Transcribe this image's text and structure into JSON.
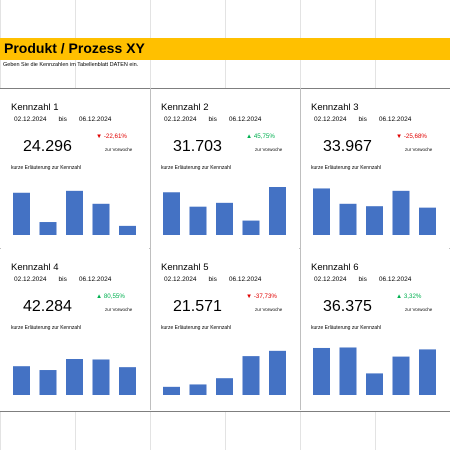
{
  "sheet": {
    "title": "Produkt / Prozess XY",
    "hint": "Geben Sie die Kennzahlen im Tabellenblatt DATEN ein."
  },
  "colors": {
    "title_bar": "#ffc000",
    "bar": "#4472c4",
    "up": "#00b050",
    "down": "#e00000"
  },
  "cards": [
    {
      "title": "Kennzahl 1",
      "from": "02.12.2024",
      "bis": "bis",
      "to": "06.12.2024",
      "value": "24.296",
      "change": "▼ -22,61%",
      "direction": "down",
      "vs": "zur Vorwoche",
      "explanation": "kurze Erläuterung zur Kennzahl",
      "bars": [
        0.88,
        0.27,
        0.92,
        0.65,
        0.19
      ]
    },
    {
      "title": "Kennzahl 2",
      "from": "02.12.2024",
      "bis": "bis",
      "to": "06.12.2024",
      "value": "31.703",
      "change": "▲ 45,75%",
      "direction": "up",
      "vs": "zur Vorwoche",
      "explanation": "kurze Erläuterung zur Kennzahl",
      "bars": [
        0.89,
        0.59,
        0.67,
        0.3,
        1.0
      ]
    },
    {
      "title": "Kennzahl 3",
      "from": "02.12.2024",
      "bis": "bis",
      "to": "06.12.2024",
      "value": "33.967",
      "change": "▼ -25,68%",
      "direction": "down",
      "vs": "zur Vorwoche",
      "explanation": "kurze Erläuterung zur Kennzahl",
      "bars": [
        0.97,
        0.65,
        0.6,
        0.92,
        0.57
      ]
    },
    {
      "title": "Kennzahl 4",
      "from": "02.12.2024",
      "bis": "bis",
      "to": "06.12.2024",
      "value": "42.284",
      "change": "▲ 80,55%",
      "direction": "up",
      "vs": "zur Vorwoche",
      "explanation": "kurze Erläuterung zur Kennzahl",
      "bars": [
        0.6,
        0.52,
        0.75,
        0.74,
        0.58
      ]
    },
    {
      "title": "Kennzahl 5",
      "from": "02.12.2024",
      "bis": "bis",
      "to": "06.12.2024",
      "value": "21.571",
      "change": "▼ -37,73%",
      "direction": "down",
      "vs": "zur Vorwoche",
      "explanation": "kurze Erläuterung zur Kennzahl",
      "bars": [
        0.17,
        0.22,
        0.35,
        0.81,
        0.92
      ]
    },
    {
      "title": "Kennzahl 6",
      "from": "02.12.2024",
      "bis": "bis",
      "to": "06.12.2024",
      "value": "36.375",
      "change": "▲ 3,32%",
      "direction": "up",
      "vs": "zur Vorwoche",
      "explanation": "kurze Erläuterung zur Kennzahl",
      "bars": [
        0.98,
        0.99,
        0.45,
        0.8,
        0.95
      ]
    }
  ]
}
